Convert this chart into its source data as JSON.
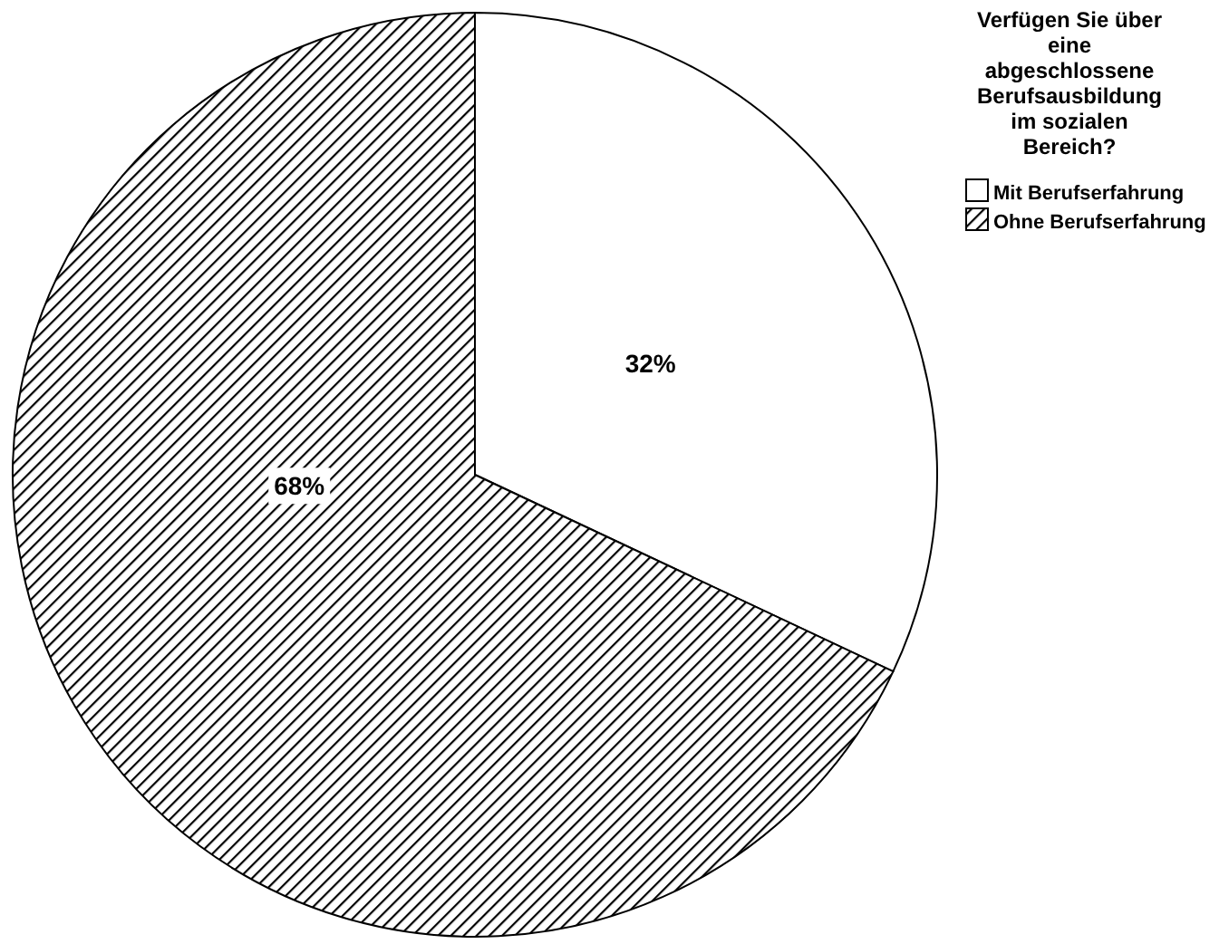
{
  "chart_data": {
    "type": "pie",
    "legend_title": "Verfügen Sie über eine abgeschlossene Berufsausbildung im sozialen Bereich?",
    "categories": [
      "Mit Berufserfahrung",
      "Ohne Berufserfahrung"
    ],
    "values": [
      32,
      68
    ],
    "colors": [
      "#ffffff",
      "#000000"
    ],
    "value_labels": [
      "32%",
      "68%"
    ],
    "legend": "top right"
  }
}
